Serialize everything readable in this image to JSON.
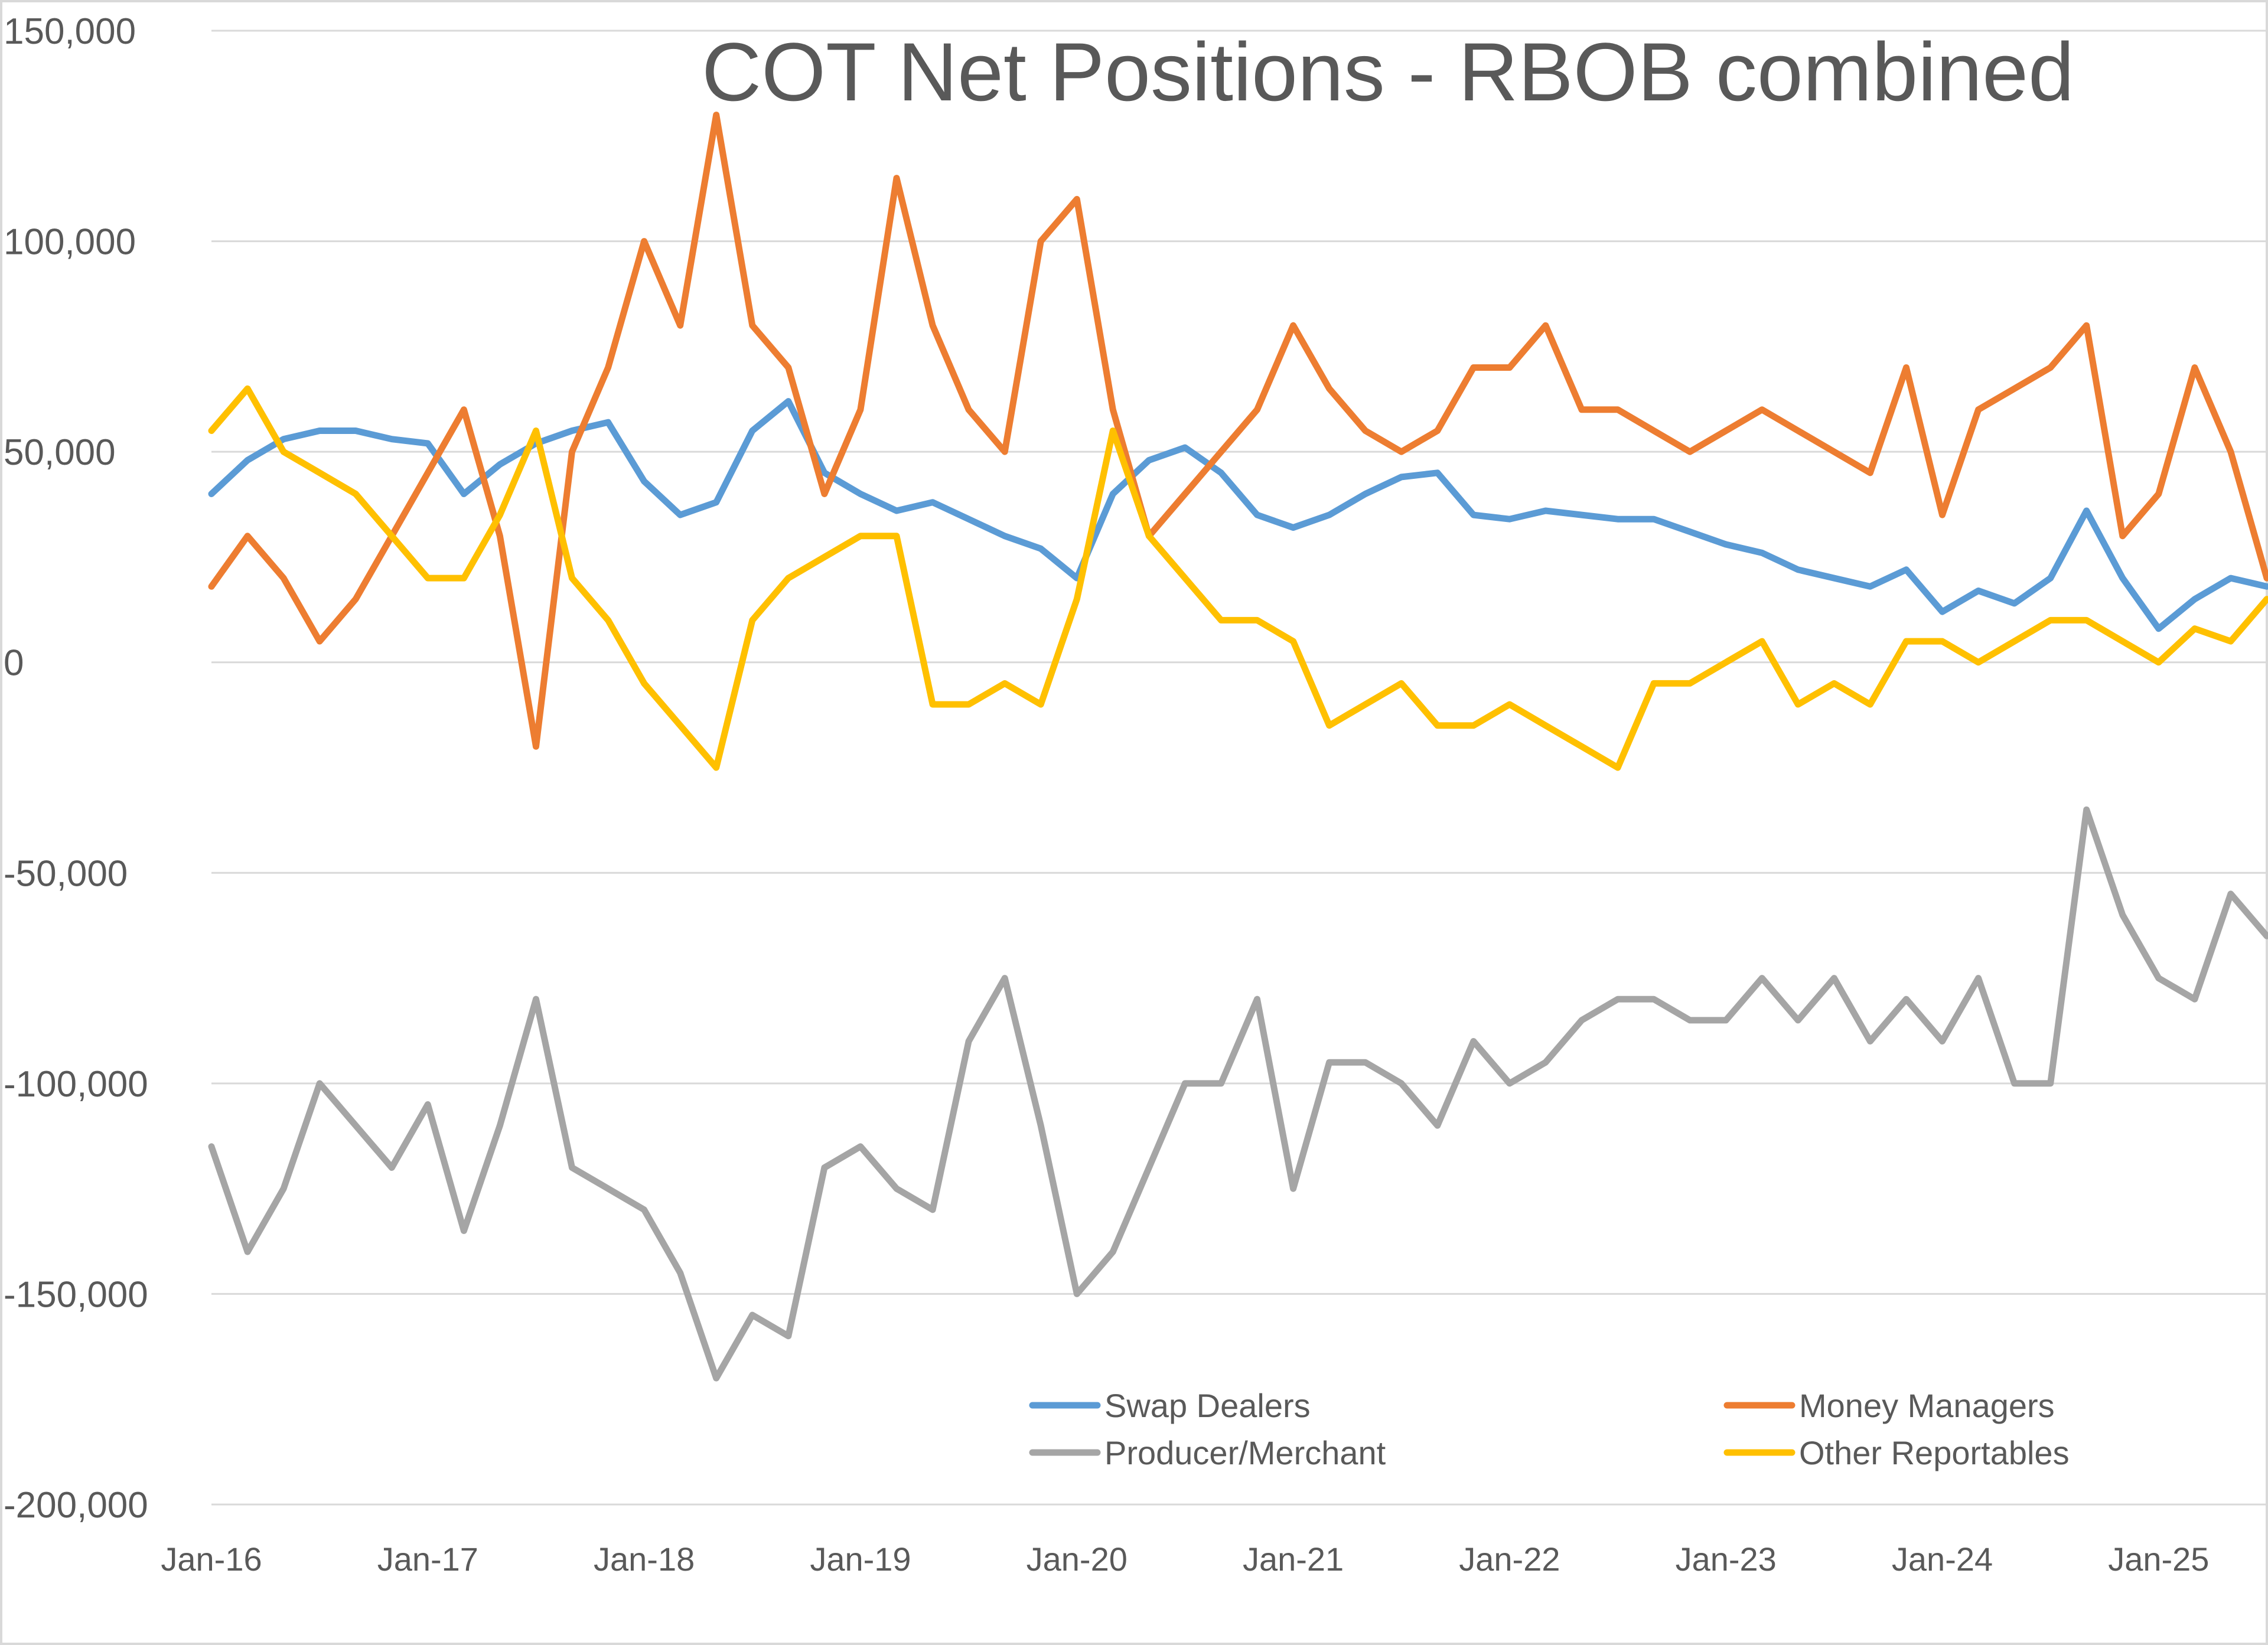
{
  "chart_data": {
    "type": "line",
    "title": "COT Net Positions - RBOB combined",
    "xlabel": "",
    "ylabel": "",
    "ylim": [
      -200000,
      150000
    ],
    "y_ticks": [
      150000,
      100000,
      50000,
      0,
      -50000,
      -100000,
      -150000,
      -200000
    ],
    "y_tick_labels": [
      "150,000",
      "100,000",
      "50,000",
      "0",
      "-50,000",
      "-100,000",
      "-150,000",
      "-200,000"
    ],
    "x_range": [
      "2016-01",
      "2025-07"
    ],
    "x_ticks": [
      "2016-01",
      "2017-01",
      "2018-01",
      "2019-01",
      "2020-01",
      "2021-01",
      "2022-01",
      "2023-01",
      "2024-01",
      "2025-01"
    ],
    "x_tick_labels": [
      "Jan-16",
      "Jan-17",
      "Jan-18",
      "Jan-19",
      "Jan-20",
      "Jan-21",
      "Jan-22",
      "Jan-23",
      "Jan-24",
      "Jan-25"
    ],
    "grid": true,
    "legend_position": "bottom-inside",
    "x": [
      "2016-01",
      "2016-03",
      "2016-05",
      "2016-07",
      "2016-09",
      "2016-11",
      "2017-01",
      "2017-03",
      "2017-05",
      "2017-07",
      "2017-09",
      "2017-11",
      "2018-01",
      "2018-03",
      "2018-05",
      "2018-07",
      "2018-09",
      "2018-11",
      "2019-01",
      "2019-03",
      "2019-05",
      "2019-07",
      "2019-09",
      "2019-11",
      "2020-01",
      "2020-03",
      "2020-05",
      "2020-07",
      "2020-09",
      "2020-11",
      "2021-01",
      "2021-03",
      "2021-05",
      "2021-07",
      "2021-09",
      "2021-11",
      "2022-01",
      "2022-03",
      "2022-05",
      "2022-07",
      "2022-09",
      "2022-11",
      "2023-01",
      "2023-03",
      "2023-05",
      "2023-07",
      "2023-09",
      "2023-11",
      "2024-01",
      "2024-03",
      "2024-05",
      "2024-07",
      "2024-09",
      "2024-11",
      "2025-01",
      "2025-03",
      "2025-05",
      "2025-07"
    ],
    "series": [
      {
        "name": "Swap Dealers",
        "color": "#5b9bd5",
        "values": [
          40000,
          48000,
          53000,
          55000,
          55000,
          53000,
          52000,
          40000,
          47000,
          52000,
          55000,
          57000,
          43000,
          35000,
          38000,
          55000,
          62000,
          45000,
          40000,
          36000,
          38000,
          34000,
          30000,
          27000,
          20000,
          40000,
          48000,
          51000,
          45000,
          35000,
          32000,
          35000,
          40000,
          44000,
          45000,
          35000,
          34000,
          36000,
          35000,
          34000,
          34000,
          31000,
          28000,
          26000,
          22000,
          20000,
          18000,
          22000,
          12000,
          17000,
          14000,
          20000,
          36000,
          20000,
          8000,
          15000,
          20000,
          18000
        ]
      },
      {
        "name": "Money Managers",
        "color": "#ed7d31",
        "values": [
          18000,
          30000,
          20000,
          5000,
          15000,
          30000,
          45000,
          60000,
          30000,
          -20000,
          50000,
          70000,
          100000,
          80000,
          130000,
          80000,
          70000,
          40000,
          60000,
          115000,
          80000,
          60000,
          50000,
          100000,
          110000,
          60000,
          30000,
          40000,
          50000,
          60000,
          80000,
          65000,
          55000,
          50000,
          55000,
          70000,
          70000,
          80000,
          60000,
          60000,
          55000,
          50000,
          55000,
          60000,
          55000,
          50000,
          45000,
          70000,
          35000,
          60000,
          65000,
          70000,
          80000,
          30000,
          40000,
          70000,
          50000,
          20000
        ]
      },
      {
        "name": "Producer/Merchant",
        "color": "#a5a5a5",
        "values": [
          -115000,
          -140000,
          -125000,
          -100000,
          -110000,
          -120000,
          -105000,
          -135000,
          -110000,
          -80000,
          -120000,
          -125000,
          -130000,
          -145000,
          -170000,
          -155000,
          -160000,
          -120000,
          -115000,
          -125000,
          -130000,
          -90000,
          -75000,
          -110000,
          -150000,
          -140000,
          -120000,
          -100000,
          -100000,
          -80000,
          -125000,
          -95000,
          -95000,
          -100000,
          -110000,
          -90000,
          -100000,
          -95000,
          -85000,
          -80000,
          -80000,
          -85000,
          -85000,
          -75000,
          -85000,
          -75000,
          -90000,
          -80000,
          -90000,
          -75000,
          -100000,
          -100000,
          -35000,
          -60000,
          -75000,
          -80000,
          -55000,
          -65000
        ]
      },
      {
        "name": "Other Reportables",
        "color": "#ffc000",
        "values": [
          55000,
          65000,
          50000,
          45000,
          40000,
          30000,
          20000,
          20000,
          35000,
          55000,
          20000,
          10000,
          -5000,
          -15000,
          -25000,
          10000,
          20000,
          25000,
          30000,
          30000,
          -10000,
          -10000,
          -5000,
          -10000,
          15000,
          55000,
          30000,
          20000,
          10000,
          10000,
          5000,
          -15000,
          -10000,
          -5000,
          -15000,
          -15000,
          -10000,
          -15000,
          -20000,
          -25000,
          -5000,
          -5000,
          0,
          5000,
          -10000,
          -5000,
          -10000,
          5000,
          5000,
          0,
          5000,
          10000,
          10000,
          5000,
          0,
          8000,
          5000,
          15000
        ]
      }
    ]
  }
}
